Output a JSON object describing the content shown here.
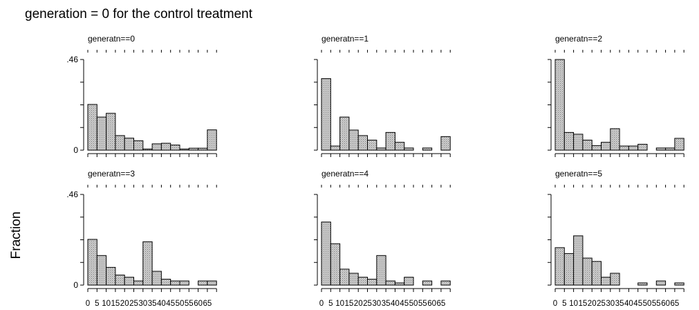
{
  "chart_data": {
    "type": "bar",
    "title": "generation = 0 for the control treatment",
    "ylabel": "Fraction",
    "ylim": [
      0,
      0.46
    ],
    "y_tick_labels": [
      "0",
      ".46"
    ],
    "x_tick_labels": [
      "0",
      "5",
      "10",
      "15",
      "20",
      "25",
      "30",
      "35",
      "40",
      "45",
      "50",
      "55",
      "60",
      "65"
    ],
    "bin_width": 5,
    "bins": [
      0,
      5,
      10,
      15,
      20,
      25,
      30,
      35,
      40,
      45,
      50,
      55,
      60,
      65
    ],
    "panels": [
      {
        "name": "generatn==0",
        "values": [
          0.232,
          0.168,
          0.187,
          0.074,
          0.061,
          0.048,
          0.006,
          0.032,
          0.035,
          0.026,
          0.006,
          0.01,
          0.01,
          0.103
        ]
      },
      {
        "name": "generatn==1",
        "values": [
          0.363,
          0.021,
          0.168,
          0.102,
          0.074,
          0.051,
          0.011,
          0.09,
          0.04,
          0.011,
          0,
          0.011,
          0,
          0.069
        ]
      },
      {
        "name": "generatn==2",
        "values": [
          0.46,
          0.09,
          0.081,
          0.051,
          0.023,
          0.04,
          0.109,
          0.021,
          0.021,
          0.03,
          0,
          0.011,
          0.011,
          0.06
        ]
      },
      {
        "name": "generatn==3",
        "values": [
          0.232,
          0.15,
          0.09,
          0.051,
          0.04,
          0.021,
          0.22,
          0.07,
          0.03,
          0.021,
          0.021,
          0,
          0.021,
          0.021
        ]
      },
      {
        "name": "generatn==4",
        "values": [
          0.32,
          0.21,
          0.081,
          0.06,
          0.04,
          0.03,
          0.15,
          0.021,
          0.011,
          0.04,
          0,
          0.021,
          0,
          0.021
        ]
      },
      {
        "name": "generatn==5",
        "values": [
          0.19,
          0.16,
          0.25,
          0.137,
          0.12,
          0.04,
          0.06,
          0,
          0,
          0.011,
          0,
          0.021,
          0,
          0.011
        ]
      }
    ]
  }
}
